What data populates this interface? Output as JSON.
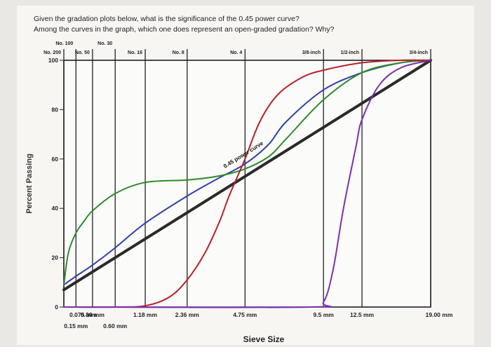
{
  "question": {
    "line1": "Given the gradation plots below, what is the significance of the 0.45 power curve?",
    "line2": "Among the curves in the graph, which one does represent an open-graded gradation? Why?"
  },
  "chart_data": {
    "type": "line",
    "xlabel": "Sieve Size",
    "ylabel": "Percent Passing",
    "x_scale": "power 0.45 (sieve size in mm)",
    "xlim": [
      0.075,
      19.0
    ],
    "ylim": [
      0,
      100
    ],
    "y_ticks": [
      "0",
      "20",
      "40",
      "60",
      "80",
      "100"
    ],
    "y_tick_values": [
      0,
      20,
      40,
      60,
      80,
      100
    ],
    "x_tick_labels": [
      {
        "label": "0.075 mm",
        "value": 0.075,
        "row": 1
      },
      {
        "label": "0.15 mm",
        "value": 0.15,
        "row": 2
      },
      {
        "label": "0.30 mm",
        "value": 0.3,
        "row": 1
      },
      {
        "label": "0.60 mm",
        "value": 0.6,
        "row": 2
      },
      {
        "label": "1.18 mm",
        "value": 1.18,
        "row": 1
      },
      {
        "label": "2.36 mm",
        "value": 2.36,
        "row": 1
      },
      {
        "label": "4.75 mm",
        "value": 4.75,
        "row": 1
      },
      {
        "label": "9.5 mm",
        "value": 9.5,
        "row": 1
      },
      {
        "label": "12.5 mm",
        "value": 12.5,
        "row": 1
      },
      {
        "label": "19.00 mm",
        "value": 19.0,
        "row": 1
      }
    ],
    "sieve_labels": [
      {
        "label": "No. 100",
        "value": 0.15,
        "row": 1
      },
      {
        "label": "No. 30",
        "value": 0.6,
        "row": 1
      },
      {
        "label": "No. 200",
        "value": 0.075,
        "row": 2
      },
      {
        "label": "No. 50",
        "value": 0.3,
        "row": 2
      },
      {
        "label": "No. 16",
        "value": 1.18,
        "row": 2
      },
      {
        "label": "No. 8",
        "value": 2.36,
        "row": 2
      },
      {
        "label": "No. 4",
        "value": 4.75,
        "row": 2
      },
      {
        "label": "3/8-inch",
        "value": 9.5,
        "row": 2
      },
      {
        "label": "1/2-inch",
        "value": 12.5,
        "row": 2
      },
      {
        "label": "3/4-inch",
        "value": 19.0,
        "row": 2
      }
    ],
    "annotation": {
      "text": "0.45 power curve",
      "x": 3.9,
      "y": 55
    },
    "series": [
      {
        "color": "#2a2a2a",
        "width": 4,
        "x": [
          0.075,
          19.0
        ],
        "y": [
          7,
          100
        ]
      },
      {
        "color": "#2f3fb0",
        "width": 2,
        "x": [
          0.075,
          0.15,
          0.3,
          0.6,
          1.18,
          2.36,
          3.5,
          4.75,
          6.0,
          7.0,
          9.5,
          12.5,
          16.0,
          19.0
        ],
        "y": [
          9,
          12.5,
          17,
          24,
          34,
          45,
          52,
          58,
          66,
          75,
          88,
          95,
          99,
          100
        ]
      },
      {
        "color": "#2d8b2d",
        "width": 2,
        "x": [
          0.075,
          0.1,
          0.15,
          0.22,
          0.3,
          0.6,
          1.18,
          2.36,
          3.5,
          4.75,
          6.0,
          7.0,
          9.5,
          12.5,
          16.0,
          19.0
        ],
        "y": [
          9,
          22,
          30,
          35,
          39,
          46,
          50.5,
          51.5,
          53,
          56,
          61,
          68,
          84,
          95,
          99,
          100
        ]
      },
      {
        "color": "#b8202a",
        "width": 2,
        "x": [
          0.075,
          0.6,
          1.18,
          1.8,
          2.36,
          3.0,
          3.6,
          4.0,
          4.75,
          5.5,
          6.5,
          8.0,
          9.5,
          12.5,
          16.0,
          19.0
        ],
        "y": [
          0,
          0,
          0.5,
          4,
          11,
          22,
          35,
          45,
          60,
          75,
          86,
          93,
          96,
          99,
          100,
          100
        ]
      },
      {
        "color": "#7b2fb0",
        "width": 2,
        "x": [
          0.075,
          8.5,
          9.5,
          10.2,
          11.0,
          12.0,
          12.5,
          14.0,
          16.0,
          19.0
        ],
        "y": [
          0,
          0,
          2,
          15,
          40,
          65,
          76,
          90,
          97,
          100
        ]
      }
    ]
  }
}
